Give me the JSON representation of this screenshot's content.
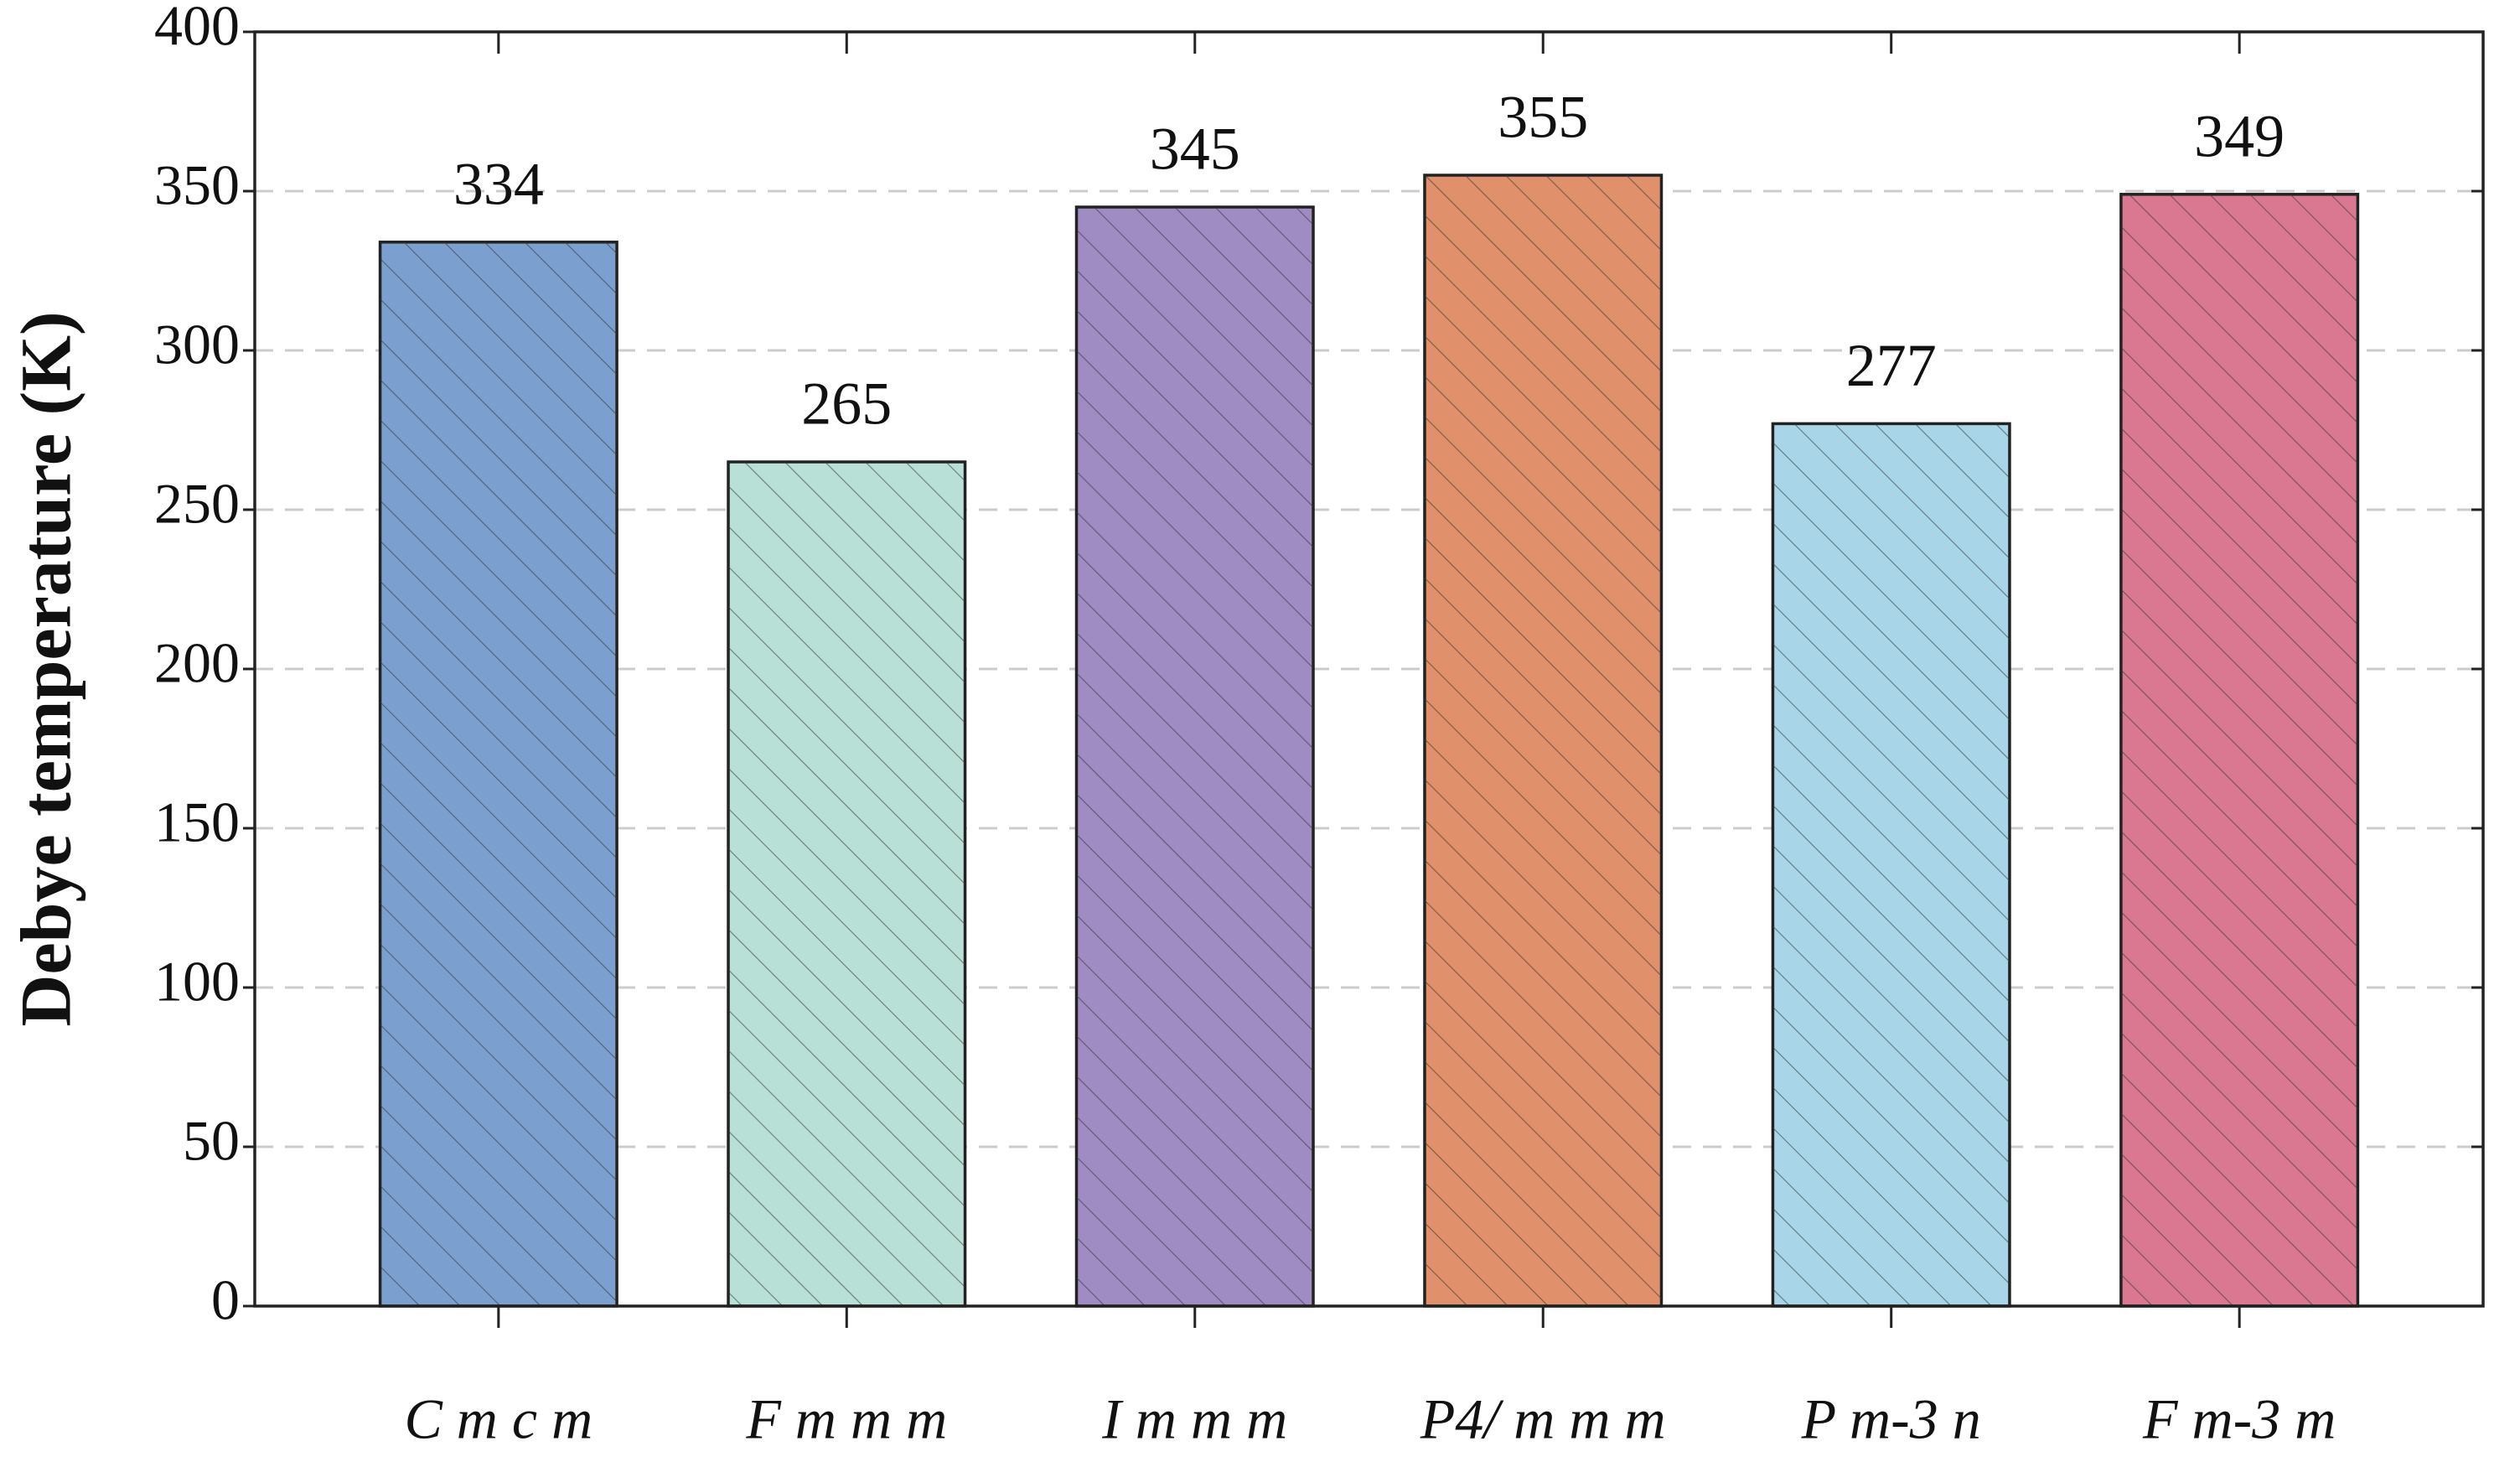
{
  "chart_data": {
    "type": "bar",
    "y_label": "Debye temperature (K)",
    "categories": [
      "C m c m",
      "F m m m",
      "I m m m",
      "P4/ m m m",
      "P m-3 n",
      "F m-3 m"
    ],
    "values": [
      334,
      265,
      345,
      355,
      277,
      349
    ],
    "colors": [
      "#7b9fcf",
      "#b9e0d6",
      "#9e8cc2",
      "#e0906a",
      "#a8d6e8",
      "#d97890"
    ],
    "ylim": [
      0,
      400
    ],
    "yticks": [
      0,
      50,
      100,
      150,
      200,
      250,
      300,
      350,
      400
    ],
    "grid": true
  }
}
